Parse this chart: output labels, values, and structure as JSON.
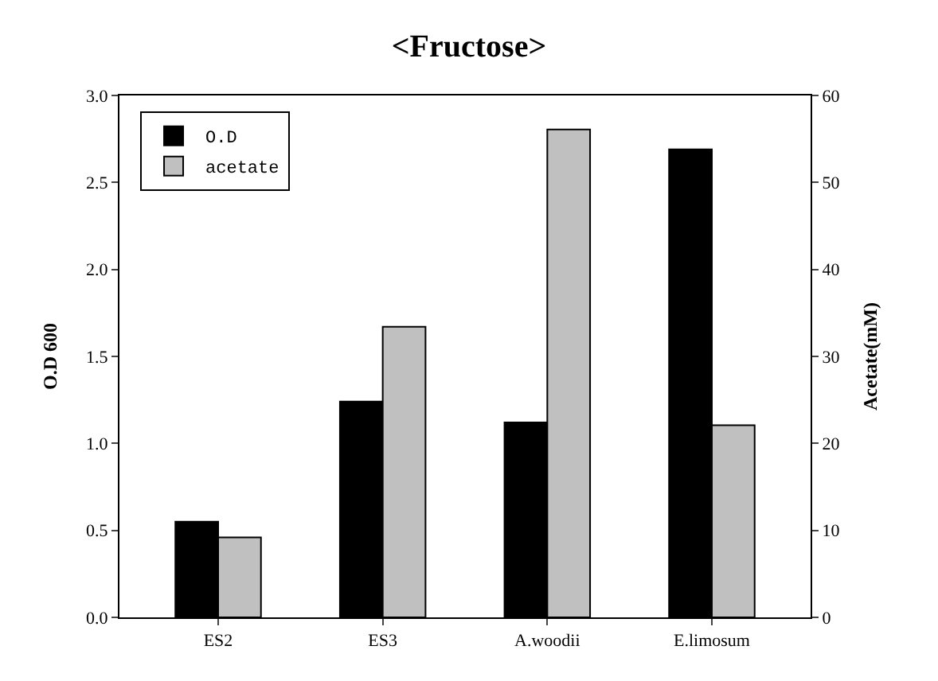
{
  "chart_data": {
    "type": "bar",
    "title": "<Fructose>",
    "ylabel": "O.D 600",
    "y2label": "Acetate(mM)",
    "categories": [
      "ES2",
      "ES3",
      "A.woodii",
      "E.limosum"
    ],
    "series": [
      {
        "name": "O.D",
        "color": "#000000",
        "values": [
          0.55,
          1.24,
          1.12,
          2.69
        ]
      },
      {
        "name": "acetate",
        "color": "#c0c0c0",
        "values": [
          9.2,
          33.4,
          56.1,
          22.1
        ],
        "axis": "y2"
      }
    ],
    "ylim": [
      0,
      3.0
    ],
    "yticks": [
      {
        "value": 0,
        "label": "0.0"
      },
      0.5,
      {
        "value": 1,
        "label": "1.0"
      },
      1.5,
      {
        "value": 2,
        "label": "2.0"
      },
      2.5,
      {
        "value": 3,
        "label": "3.0"
      }
    ],
    "y2lim": [
      0,
      60
    ],
    "y2ticks": [
      0,
      10,
      20,
      30,
      40,
      50,
      60
    ],
    "legend": "top left"
  }
}
